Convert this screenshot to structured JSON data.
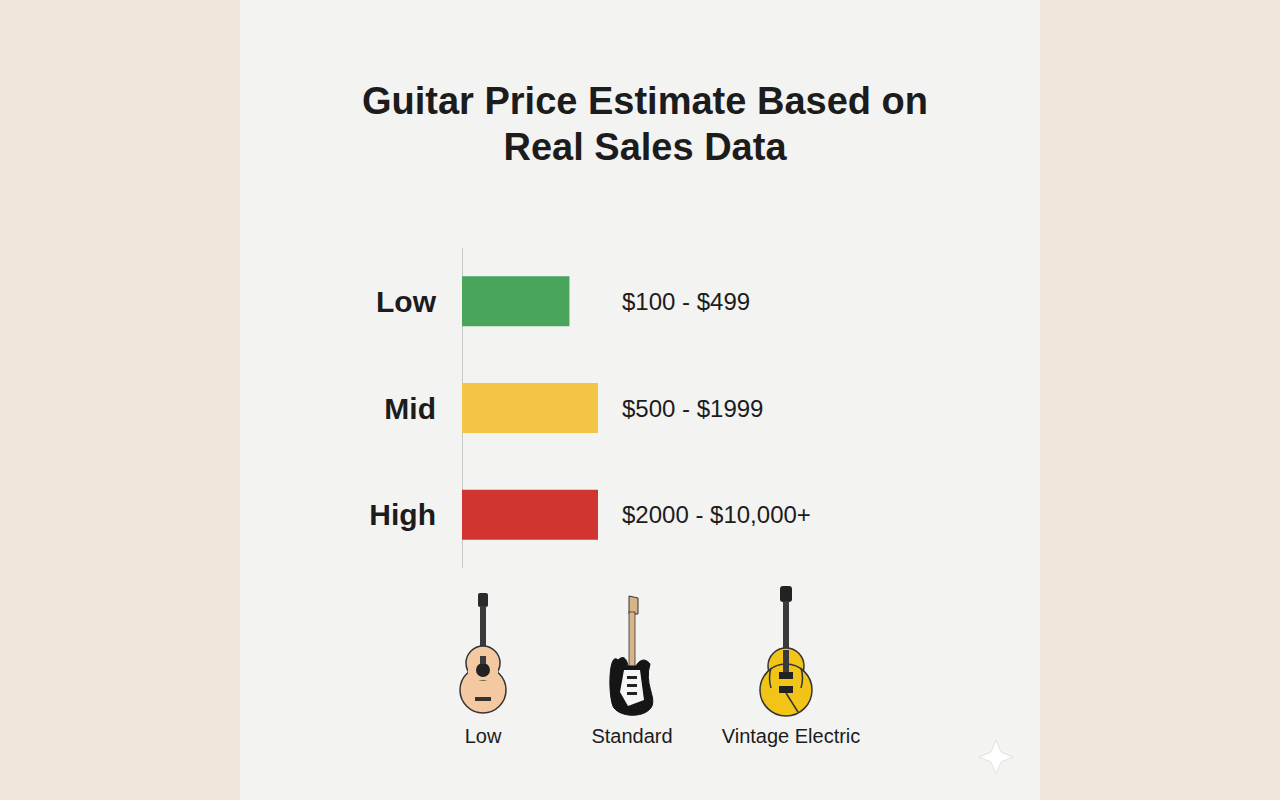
{
  "chart_data": {
    "type": "bar",
    "title": "Guitar Price Estimate Based on Real Sales Data",
    "orientation": "horizontal",
    "categories": [
      "Low",
      "Mid",
      "High"
    ],
    "values": [
      79,
      100,
      100
    ],
    "colors": [
      "#4aa55c",
      "#f4c444",
      "#d0352f"
    ],
    "range_labels": [
      "$100 - $499",
      "$500 - $1999",
      "$2000 - $10,000+"
    ],
    "xlim": [
      0,
      100
    ],
    "tick_labels": "y",
    "grid": false,
    "icons": [
      "Low",
      "Standard",
      "Vintage Electric"
    ]
  }
}
